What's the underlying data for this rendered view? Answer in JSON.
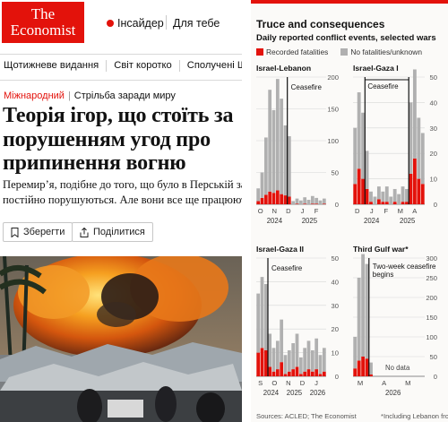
{
  "header": {
    "logo_line1": "The",
    "logo_line2": "Economist",
    "insider_label": "Інсайдер",
    "for_you_label": "Для тебе"
  },
  "nav": {
    "items": [
      "Щотижневе видання",
      "Світ коротко",
      "Сполучені Штати",
      "Ки"
    ]
  },
  "article": {
    "section": "Міжнародний",
    "rubric": "Стрільба заради миру",
    "headline": "Теорія ігор, що стоїть за порушенням угод про припинення вогню",
    "standfirst_line1": "Перемир’я, подібне до того, що було в Перській за",
    "standfirst_line2": "постійно порушуються. Але вони все ще працюют",
    "save_label": "Зберегти",
    "share_label": "Поділитися"
  },
  "graphic": {
    "title": "Truce and consequences",
    "subtitle": "Daily reported conflict events, selected wars",
    "legend_fatal": "Recorded fatalities",
    "legend_nofatal": "No fatalities/unknown",
    "source": "Sources: ACLED; The Economist",
    "footnote": "*Including Lebanon front",
    "colors": {
      "fatal": "#e3120b",
      "nofatal": "#b0b0b0",
      "accent": "#e3120b"
    }
  },
  "chart_data": [
    {
      "type": "bar",
      "title": "Israel-Lebanon",
      "annotation": "Ceasefire",
      "ylim": [
        0,
        200
      ],
      "yticks": [
        0,
        50,
        100,
        150,
        200
      ],
      "xticks": [
        "O",
        "N",
        "D",
        "J",
        "F"
      ],
      "year_labels": [
        "2024",
        "2025"
      ],
      "ceasefire_index": 8,
      "series": [
        {
          "name": "No fatalities/unknown",
          "values": [
            20,
            40,
            90,
            160,
            130,
            175,
            150,
            110,
            95,
            5,
            8,
            6,
            10,
            7,
            12,
            9,
            6,
            8
          ]
        },
        {
          "name": "Recorded fatalities",
          "values": [
            5,
            10,
            15,
            20,
            18,
            22,
            16,
            14,
            12,
            0,
            1,
            0,
            1,
            0,
            1,
            1,
            0,
            1
          ]
        }
      ]
    },
    {
      "type": "bar",
      "title": "Israel-Gaza I",
      "annotation": "Ceasefire",
      "ylim": [
        0,
        50
      ],
      "yticks": [
        0,
        10,
        20,
        30,
        40,
        50
      ],
      "xticks": [
        "D",
        "J",
        "F",
        "M",
        "A"
      ],
      "year_labels": [
        "2024",
        "2025"
      ],
      "ceasefire_start_index": 3,
      "ceasefire_end_index": 14,
      "series": [
        {
          "name": "No fatalities/unknown",
          "values": [
            22,
            30,
            26,
            15,
            4,
            3,
            5,
            4,
            6,
            3,
            5,
            4,
            6,
            5,
            28,
            35,
            24,
            20
          ]
        },
        {
          "name": "Recorded fatalities",
          "values": [
            8,
            14,
            10,
            6,
            1,
            0,
            2,
            1,
            1,
            0,
            1,
            0,
            1,
            1,
            12,
            18,
            10,
            8
          ]
        }
      ]
    },
    {
      "type": "bar",
      "title": "Israel-Gaza II",
      "annotation": "Ceasefire",
      "ylim": [
        0,
        50
      ],
      "yticks": [
        0,
        10,
        20,
        30,
        40,
        50
      ],
      "xticks": [
        "S",
        "O",
        "N",
        "D",
        "J"
      ],
      "year_labels": [
        "2024",
        "2025",
        "2026"
      ],
      "ceasefire_index": 3,
      "series": [
        {
          "name": "No fatalities/unknown",
          "values": [
            25,
            30,
            28,
            14,
            10,
            12,
            18,
            8,
            9,
            11,
            14,
            7,
            10,
            12,
            9,
            13,
            8,
            10
          ]
        },
        {
          "name": "Recorded fatalities",
          "values": [
            10,
            12,
            11,
            4,
            2,
            3,
            6,
            1,
            2,
            3,
            4,
            1,
            2,
            3,
            2,
            3,
            1,
            2
          ]
        }
      ]
    },
    {
      "type": "bar",
      "title": "Third Gulf war*",
      "annotation": "Two-week ceasefire begins",
      "nodata_label": "No data",
      "ylim": [
        0,
        300
      ],
      "yticks": [
        0,
        50,
        100,
        150,
        200,
        250,
        300
      ],
      "xticks": [
        "M",
        "A",
        "M"
      ],
      "year_labels": [
        "2026"
      ],
      "ceasefire_index": 4,
      "series": [
        {
          "name": "No fatalities/unknown",
          "values": [
            80,
            210,
            260,
            240,
            30,
            0,
            0,
            0,
            0,
            0,
            0,
            0,
            0,
            0,
            0,
            0,
            0,
            0
          ]
        },
        {
          "name": "Recorded fatalities",
          "values": [
            20,
            40,
            50,
            45,
            5,
            0,
            0,
            0,
            0,
            0,
            0,
            0,
            0,
            0,
            0,
            0,
            0,
            0
          ]
        }
      ]
    }
  ]
}
